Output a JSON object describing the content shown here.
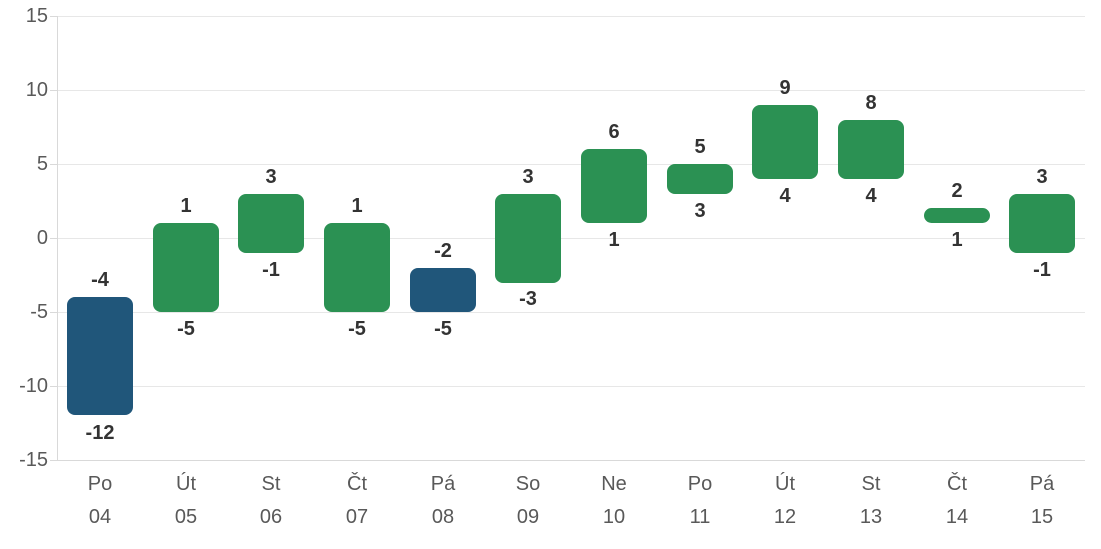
{
  "chart_data": {
    "type": "bar",
    "variant": "floating-range-column",
    "title": "",
    "xlabel": "",
    "ylabel": "",
    "ylim": [
      -15,
      15
    ],
    "yticks": [
      15,
      10,
      5,
      0,
      -5,
      -10,
      -15
    ],
    "grid": true,
    "legend": false,
    "categories": [
      {
        "day": "Po",
        "date": "04"
      },
      {
        "day": "Út",
        "date": "05"
      },
      {
        "day": "St",
        "date": "06"
      },
      {
        "day": "Čt",
        "date": "07"
      },
      {
        "day": "Pá",
        "date": "08"
      },
      {
        "day": "So",
        "date": "09"
      },
      {
        "day": "Ne",
        "date": "10"
      },
      {
        "day": "Po",
        "date": "11"
      },
      {
        "day": "Út",
        "date": "12"
      },
      {
        "day": "St",
        "date": "13"
      },
      {
        "day": "Čt",
        "date": "14"
      },
      {
        "day": "Pá",
        "date": "15"
      }
    ],
    "series": [
      {
        "name": "high",
        "values": [
          -4,
          1,
          3,
          1,
          -2,
          3,
          6,
          5,
          9,
          8,
          2,
          3
        ]
      },
      {
        "name": "low",
        "values": [
          -12,
          -5,
          -1,
          -5,
          -5,
          -3,
          1,
          3,
          4,
          4,
          1,
          -1
        ]
      }
    ],
    "bar_colors": [
      "#20567a",
      "#2b9153",
      "#2b9153",
      "#2b9153",
      "#20567a",
      "#2b9153",
      "#2b9153",
      "#2b9153",
      "#2b9153",
      "#2b9153",
      "#2b9153",
      "#2b9153"
    ],
    "colors": {
      "bar_green": "#2b9153",
      "bar_blue": "#20567a",
      "grid": "#e7e7e7",
      "axis_line": "#d9d9d9",
      "tick_label": "#595959",
      "data_label": "#333333",
      "background": "#ffffff"
    }
  }
}
